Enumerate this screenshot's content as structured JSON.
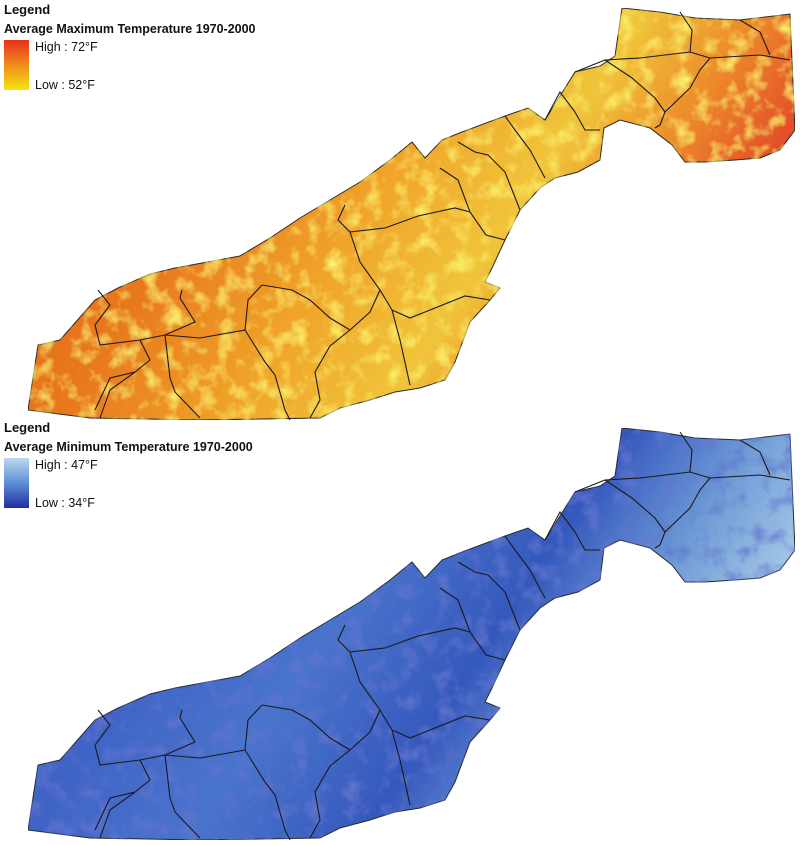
{
  "max_map": {
    "legend_heading": "Legend",
    "title": "Average Maximum Temperature 1970-2000",
    "high_label": "High : 72°F",
    "low_label": "Low : 52°F",
    "colors": {
      "high": "#e8301c",
      "mid": "#f08c1c",
      "low": "#f2e60f",
      "boundary": "#1a1a1a"
    }
  },
  "min_map": {
    "legend_heading": "Legend",
    "title": "Average Minimum Temperature 1970-2000",
    "high_label": "High : 47°F",
    "low_label": "Low : 34°F",
    "colors": {
      "high": "#bcd8f0",
      "mid": "#5d8fd6",
      "low": "#1e2ea3",
      "boundary": "#1a1a1a"
    }
  }
}
